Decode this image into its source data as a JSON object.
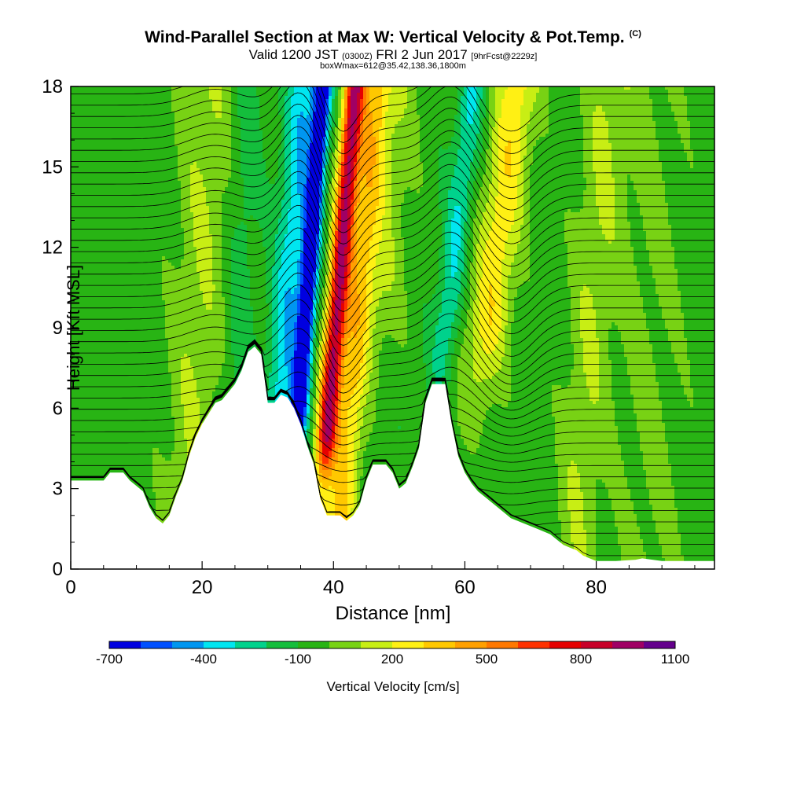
{
  "header": {
    "title": "Wind-Parallel Section at Max W: Vertical Velocity & Pot.Temp.",
    "copyright_mark": "(C)",
    "valid_prefix": "Valid 1200 JST",
    "valid_utc": "(0300Z)",
    "valid_date": "FRI 2 Jun 2017",
    "forecast_info": "[9hrFcst@2229z]",
    "box_info": "boxWmax=612@35.42,138.36,1800m"
  },
  "colors": {
    "terrain": "#ffffff",
    "contour": "#000000",
    "background": "#ffffff",
    "palette": [
      "#0000e0",
      "#0050ff",
      "#0096f0",
      "#00e6f0",
      "#00d28c",
      "#14be3c",
      "#28b414",
      "#78d214",
      "#c8ee14",
      "#fff014",
      "#ffc800",
      "#ffa000",
      "#ff7800",
      "#ff3200",
      "#e60000",
      "#c80028",
      "#a00064",
      "#64008c"
    ]
  },
  "chart_data": {
    "type": "heatmap",
    "xlabel": "Distance [nm]",
    "ylabel": "Height [Kft MSL]",
    "xlim": [
      0,
      98
    ],
    "ylim": [
      0,
      18
    ],
    "xticks": [
      0,
      20,
      40,
      60,
      80
    ],
    "yticks": [
      0,
      3,
      6,
      9,
      12,
      15,
      18
    ],
    "colorbar": {
      "label": "Vertical Velocity [cm/s]",
      "ticks": [
        -700,
        -400,
        -100,
        200,
        500,
        800,
        1100
      ],
      "levels": [
        -700,
        -600,
        -500,
        -400,
        -300,
        -200,
        -100,
        0,
        100,
        200,
        300,
        400,
        500,
        600,
        700,
        800,
        900,
        1000,
        1100
      ]
    },
    "terrain_profile": [
      [
        0,
        3.3
      ],
      [
        2,
        3.3
      ],
      [
        5,
        3.3
      ],
      [
        6,
        3.6
      ],
      [
        8,
        3.6
      ],
      [
        9,
        3.3
      ],
      [
        10,
        3.1
      ],
      [
        11,
        2.9
      ],
      [
        12,
        2.3
      ],
      [
        13,
        1.9
      ],
      [
        14,
        1.7
      ],
      [
        15,
        2.0
      ],
      [
        16,
        2.7
      ],
      [
        17,
        3.3
      ],
      [
        18,
        4.2
      ],
      [
        19,
        4.9
      ],
      [
        20,
        5.4
      ],
      [
        21,
        5.8
      ],
      [
        22,
        6.2
      ],
      [
        23,
        6.3
      ],
      [
        24,
        6.6
      ],
      [
        25,
        6.9
      ],
      [
        26,
        7.4
      ],
      [
        27,
        8.1
      ],
      [
        28,
        8.3
      ],
      [
        29,
        8.0
      ],
      [
        30,
        6.2
      ],
      [
        31,
        6.2
      ],
      [
        32,
        6.5
      ],
      [
        33,
        6.4
      ],
      [
        34,
        6.0
      ],
      [
        35,
        5.4
      ],
      [
        36,
        4.6
      ],
      [
        37,
        3.9
      ],
      [
        38,
        2.6
      ],
      [
        39,
        2.0
      ],
      [
        40,
        2.0
      ],
      [
        41,
        2.0
      ],
      [
        42,
        1.8
      ],
      [
        43,
        2.0
      ],
      [
        44,
        2.4
      ],
      [
        45,
        3.3
      ],
      [
        46,
        3.9
      ],
      [
        47,
        3.9
      ],
      [
        48,
        3.9
      ],
      [
        49,
        3.6
      ],
      [
        50,
        3.0
      ],
      [
        51,
        3.2
      ],
      [
        52,
        3.8
      ],
      [
        53,
        4.5
      ],
      [
        54,
        6.2
      ],
      [
        55,
        6.9
      ],
      [
        57,
        6.9
      ],
      [
        58,
        5.4
      ],
      [
        59,
        4.2
      ],
      [
        60,
        3.6
      ],
      [
        61,
        3.2
      ],
      [
        62,
        2.9
      ],
      [
        63,
        2.7
      ],
      [
        64,
        2.5
      ],
      [
        65,
        2.3
      ],
      [
        66,
        2.1
      ],
      [
        67,
        1.9
      ],
      [
        68,
        1.8
      ],
      [
        69,
        1.7
      ],
      [
        70,
        1.6
      ],
      [
        71,
        1.5
      ],
      [
        72,
        1.4
      ],
      [
        73,
        1.3
      ],
      [
        74,
        1.1
      ],
      [
        75,
        0.9
      ],
      [
        76,
        0.8
      ],
      [
        77,
        0.7
      ],
      [
        78,
        0.5
      ],
      [
        79,
        0.4
      ],
      [
        80,
        0.3
      ],
      [
        83,
        0.3
      ],
      [
        86,
        0.35
      ],
      [
        87,
        0.4
      ],
      [
        90,
        0.3
      ],
      [
        98,
        0.3
      ]
    ]
  }
}
